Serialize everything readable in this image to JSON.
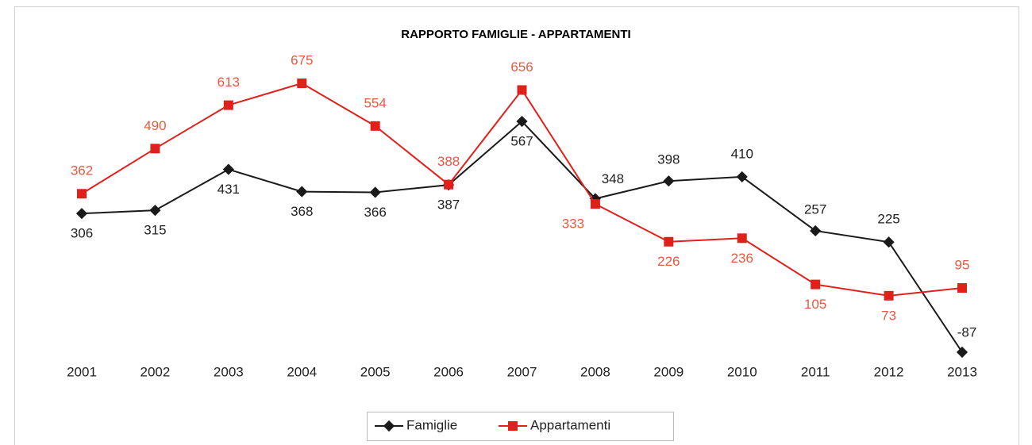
{
  "chart_data": {
    "type": "line",
    "title": "RAPPORTO FAMIGLIE - APPARTAMENTI",
    "categories": [
      "2001",
      "2002",
      "2003",
      "2004",
      "2005",
      "2006",
      "2007",
      "2008",
      "2009",
      "2010",
      "2011",
      "2012",
      "2013"
    ],
    "series": [
      {
        "name": "Famiglie",
        "color": "#1a1a1a",
        "values": [
          306,
          315,
          431,
          368,
          366,
          387,
          567,
          348,
          398,
          410,
          257,
          225,
          -87
        ]
      },
      {
        "name": "Appartamenti",
        "color": "#e0201b",
        "values": [
          362,
          490,
          613,
          675,
          554,
          388,
          656,
          333,
          226,
          236,
          105,
          73,
          95
        ]
      }
    ]
  }
}
